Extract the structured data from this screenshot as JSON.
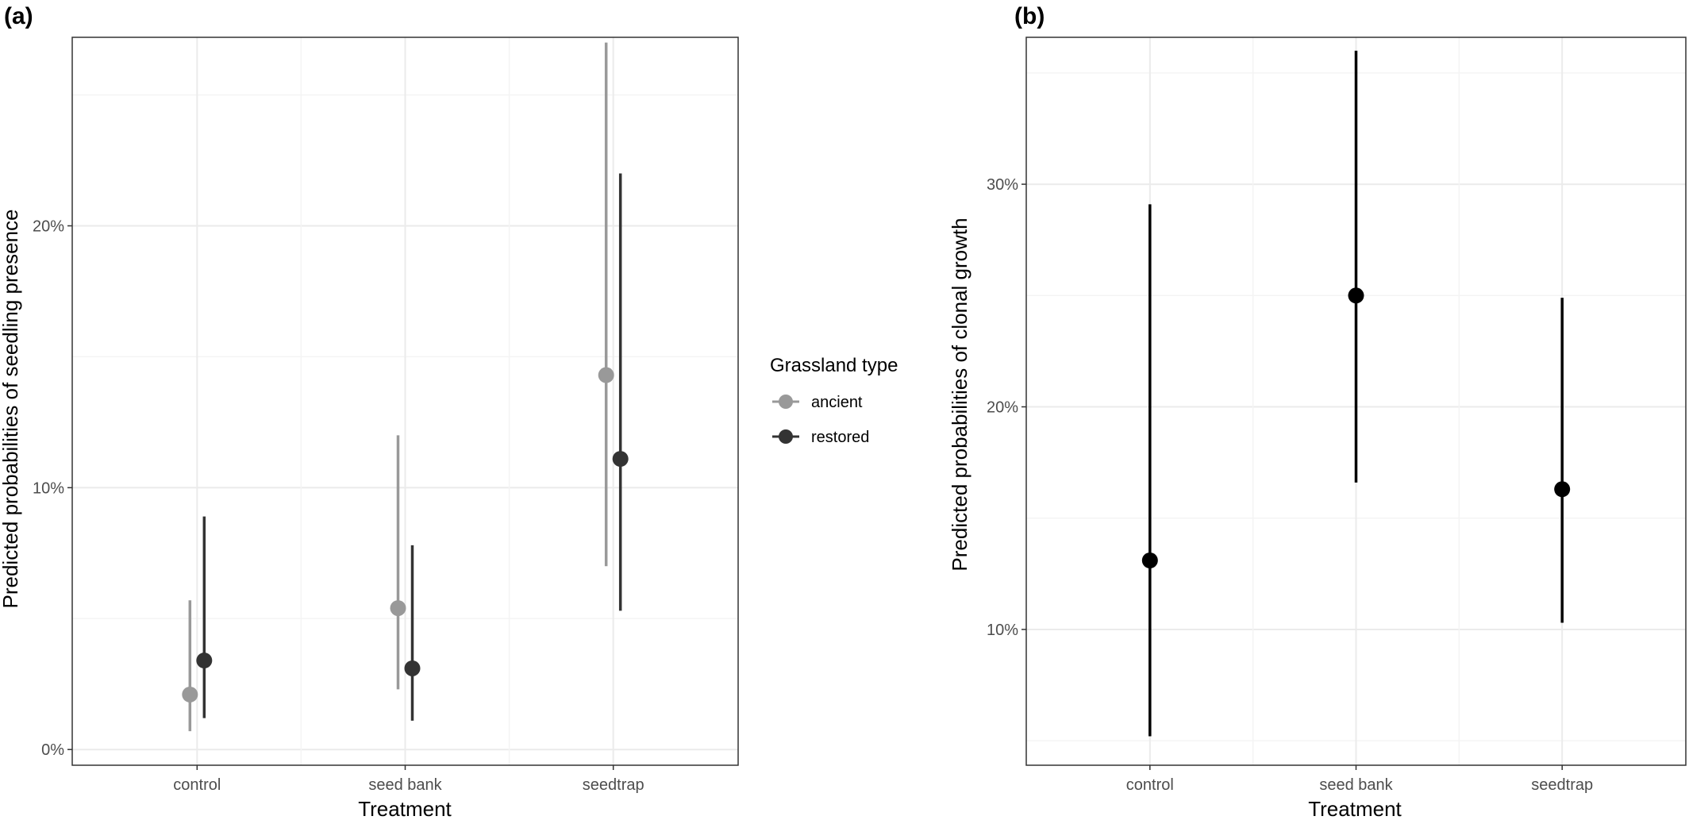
{
  "chart_data": [
    {
      "type": "pointrange",
      "panel_label": "(a)",
      "xlabel": "Treatment",
      "ylabel": "Predicted probabilities of seedling presence",
      "categories": [
        "control",
        "seed bank",
        "seedtrap"
      ],
      "ylim": [
        -0.006,
        0.272
      ],
      "y_ticks": [
        0,
        0.1,
        0.2
      ],
      "y_tick_labels": [
        "0%",
        "10%",
        "20%"
      ],
      "grid": true,
      "legend": {
        "title": "Grassland type",
        "position": "right",
        "entries": [
          "ancient",
          "restored"
        ]
      },
      "series": [
        {
          "name": "ancient",
          "color": "#999999",
          "values": [
            0.021,
            0.054,
            0.143
          ],
          "lower": [
            0.007,
            0.023,
            0.07
          ],
          "upper": [
            0.057,
            0.12,
            0.27
          ]
        },
        {
          "name": "restored",
          "color": "#333333",
          "values": [
            0.034,
            0.031,
            0.111
          ],
          "lower": [
            0.012,
            0.011,
            0.053
          ],
          "upper": [
            0.089,
            0.078,
            0.22
          ]
        }
      ]
    },
    {
      "type": "pointrange",
      "panel_label": "(b)",
      "xlabel": "Treatment",
      "ylabel": "Predicted probabilities of clonal growth",
      "categories": [
        "control",
        "seed bank",
        "seedtrap"
      ],
      "ylim": [
        0.039,
        0.366
      ],
      "y_ticks": [
        0.1,
        0.2,
        0.3
      ],
      "y_tick_labels": [
        "10%",
        "20%",
        "30%"
      ],
      "grid": true,
      "series": [
        {
          "color": "#000000",
          "values": [
            0.131,
            0.25,
            0.163
          ],
          "lower": [
            0.052,
            0.166,
            0.103
          ],
          "upper": [
            0.291,
            0.36,
            0.249
          ]
        }
      ]
    }
  ]
}
